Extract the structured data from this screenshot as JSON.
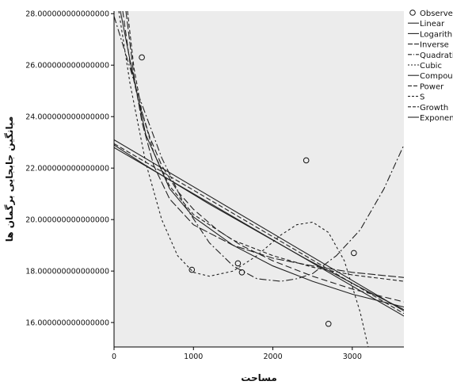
{
  "chart_data": {
    "type": "line",
    "title": "",
    "xlabel": "مساحت",
    "ylabel": "میانگین جابجایی برگمان ها",
    "xlim": [
      0,
      3650
    ],
    "ylim": [
      15.05,
      28.1
    ],
    "xticks": [
      0,
      1000,
      2000,
      3000
    ],
    "xtick_labels": [
      "0",
      "1000",
      "2000",
      "3000"
    ],
    "yticks": [
      16,
      18,
      20,
      22,
      24,
      26,
      28
    ],
    "ytick_labels": [
      "16.000000000000000",
      "18.000000000000000",
      "20.000000000000000",
      "22.000000000000000",
      "24.000000000000000",
      "26.000000000000000",
      "28.000000000000000"
    ],
    "grid": false,
    "background_color": "#ececec",
    "legend_position": "right",
    "observed": {
      "name": "Observed",
      "x": [
        350,
        980,
        1560,
        1610,
        2420,
        2700,
        3020
      ],
      "y": [
        26.3,
        18.05,
        18.3,
        17.95,
        22.3,
        15.95,
        18.7
      ]
    },
    "series": [
      {
        "name": "Linear",
        "dash": "",
        "x": [
          0,
          3650
        ],
        "y": [
          22.8,
          16.25
        ]
      },
      {
        "name": "Logarithmic",
        "dash": "",
        "x": [
          80,
          200,
          400,
          700,
          1000,
          1500,
          2000,
          2500,
          3000,
          3650
        ],
        "y": [
          28.1,
          26.2,
          23.3,
          21.2,
          20.1,
          19.0,
          18.2,
          17.6,
          17.1,
          16.6
        ]
      },
      {
        "name": "Inverse",
        "dash": "10 3",
        "x": [
          150,
          250,
          350,
          500,
          700,
          1000,
          1500,
          2000,
          2500,
          3000,
          3650
        ],
        "y": [
          28.1,
          25.6,
          23.8,
          22.1,
          20.8,
          19.8,
          19.0,
          18.5,
          18.2,
          17.95,
          17.75
        ]
      },
      {
        "name": "Quadratic",
        "dash": "9 3 2 3",
        "x": [
          0,
          300,
          600,
          900,
          1200,
          1500,
          1800,
          2100,
          2300,
          2500,
          2800,
          3100,
          3400,
          3650
        ],
        "y": [
          27.9,
          24.9,
          22.4,
          20.5,
          19.1,
          18.2,
          17.7,
          17.6,
          17.7,
          17.9,
          18.6,
          19.6,
          21.2,
          22.9
        ]
      },
      {
        "name": "Cubic",
        "dash": "3 3",
        "x": [
          60,
          200,
          400,
          600,
          800,
          1000,
          1200,
          1500,
          1800,
          2100,
          2300,
          2500,
          2700,
          2900,
          3100,
          3200
        ],
        "y": [
          28.1,
          25.3,
          22.2,
          20.0,
          18.6,
          17.95,
          17.8,
          18.0,
          18.6,
          19.4,
          19.8,
          19.9,
          19.5,
          18.4,
          16.4,
          15.05
        ]
      },
      {
        "name": "Compound",
        "dash": "",
        "x": [
          0,
          3650
        ],
        "y": [
          23.1,
          16.45
        ]
      },
      {
        "name": "Power",
        "dash": "8 4",
        "x": [
          110,
          200,
          300,
          450,
          600,
          800,
          1000,
          1300,
          1600,
          2000,
          2500,
          3000,
          3650
        ],
        "y": [
          28.1,
          26.1,
          24.7,
          23.2,
          22.1,
          21.1,
          20.4,
          19.6,
          19.0,
          18.4,
          17.8,
          17.3,
          16.8
        ]
      },
      {
        "name": "S",
        "dash": "5 3",
        "x": [
          170,
          250,
          350,
          500,
          700,
          1000,
          1500,
          2000,
          2500,
          3000,
          3650
        ],
        "y": [
          28.1,
          25.9,
          24.2,
          22.6,
          21.3,
          20.2,
          19.2,
          18.6,
          18.15,
          17.85,
          17.6
        ]
      },
      {
        "name": "Growth",
        "dash": "6 3",
        "x": [
          0,
          3650
        ],
        "y": [
          22.95,
          16.35
        ]
      },
      {
        "name": "Exponential",
        "dash": "",
        "x": [
          0,
          400,
          800,
          1200,
          1600,
          2000,
          2400,
          2800,
          3200,
          3650
        ],
        "y": [
          22.9,
          22.1,
          21.35,
          20.6,
          19.9,
          19.2,
          18.5,
          17.85,
          17.2,
          16.5
        ]
      }
    ]
  }
}
